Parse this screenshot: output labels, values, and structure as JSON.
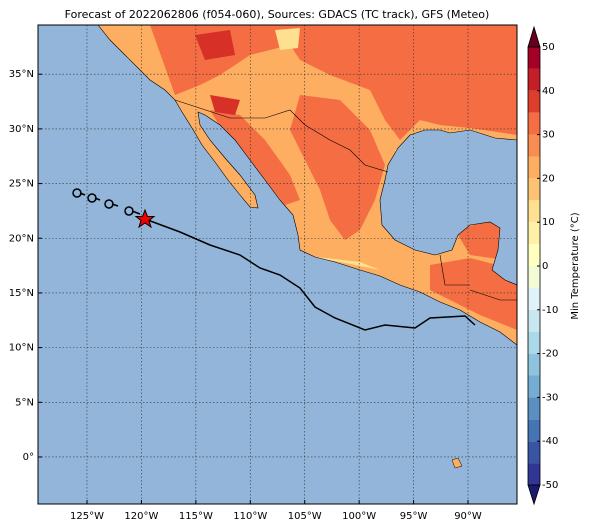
{
  "title": "Forecast of 2022062806 (f054-060), Sources: GDACS (TC track), GFS (Meteo)",
  "map": {
    "xlim": [
      -129.5,
      -85.5
    ],
    "ylim": [
      -4.3,
      39.5
    ],
    "xticks": [
      {
        "value": -125,
        "label": "125°W"
      },
      {
        "value": -120,
        "label": "120°W"
      },
      {
        "value": -115,
        "label": "115°W"
      },
      {
        "value": -110,
        "label": "110°W"
      },
      {
        "value": -105,
        "label": "105°W"
      },
      {
        "value": -100,
        "label": "100°W"
      },
      {
        "value": -95,
        "label": "95°W"
      },
      {
        "value": -90,
        "label": "90°W"
      }
    ],
    "yticks": [
      {
        "value": 0,
        "label": "0°"
      },
      {
        "value": 5,
        "label": "5°N"
      },
      {
        "value": 10,
        "label": "10°N"
      },
      {
        "value": 15,
        "label": "15°N"
      },
      {
        "value": 20,
        "label": "20°N"
      },
      {
        "value": 25,
        "label": "25°N"
      },
      {
        "value": 30,
        "label": "30°N"
      },
      {
        "value": 35,
        "label": "35°N"
      }
    ],
    "grid": true
  },
  "colorbar": {
    "label": "Min Temperature (°C)",
    "levels": [
      -50,
      -45,
      -40,
      -35,
      -30,
      -25,
      -20,
      -15,
      -10,
      -5,
      0,
      5,
      10,
      15,
      20,
      25,
      30,
      35,
      40,
      45,
      50
    ],
    "colors": [
      "#313695",
      "#3a54a4",
      "#4575b4",
      "#5b8fc2",
      "#74add1",
      "#8fc3dd",
      "#abd9e9",
      "#c7e6f0",
      "#e0f3f8",
      "#f2fad6",
      "#ffffbf",
      "#fff0a8",
      "#fee090",
      "#fdc374",
      "#fdae61",
      "#f88d52",
      "#f46d43",
      "#dd3d2d",
      "#c41e27",
      "#a50026"
    ],
    "under_color": "#1a1a6e",
    "over_color": "#67001f",
    "ticks": [
      -50,
      -40,
      -30,
      -20,
      -10,
      0,
      10,
      20,
      30,
      40,
      50
    ]
  }
}
